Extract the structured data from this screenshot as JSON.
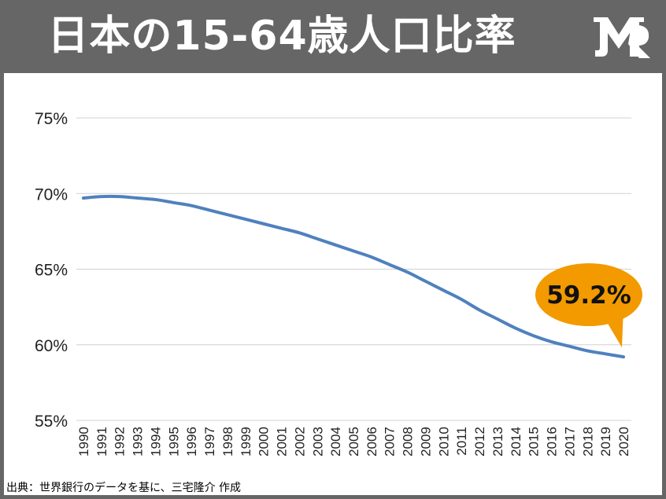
{
  "header": {
    "title": "日本の15-64歳人口比率",
    "logo_icon": "brand-logo-icon"
  },
  "colors": {
    "header_bg": "#666666",
    "line": "#4f81bd",
    "callout": "#f29a00",
    "grid": "#d0d0d0"
  },
  "chart_data": {
    "type": "line",
    "title": "日本の15-64歳人口比率",
    "xlabel": "",
    "ylabel": "",
    "ylim": [
      55,
      75
    ],
    "yticks": [
      55,
      60,
      65,
      70,
      75
    ],
    "ytick_labels": [
      "55%",
      "60%",
      "65%",
      "70%",
      "75%"
    ],
    "grid": true,
    "legend": "none",
    "categories": [
      "1990",
      "1991",
      "1992",
      "1993",
      "1994",
      "1995",
      "1996",
      "1997",
      "1998",
      "1999",
      "2000",
      "2001",
      "2002",
      "2003",
      "2004",
      "2005",
      "2006",
      "2007",
      "2008",
      "2009",
      "2010",
      "2011",
      "2012",
      "2013",
      "2014",
      "2015",
      "2016",
      "2017",
      "2018",
      "2019",
      "2020"
    ],
    "series": [
      {
        "values": [
          69.7,
          69.8,
          69.8,
          69.7,
          69.6,
          69.4,
          69.2,
          68.9,
          68.6,
          68.3,
          68.0,
          67.7,
          67.4,
          67.0,
          66.6,
          66.2,
          65.8,
          65.3,
          64.8,
          64.2,
          63.6,
          63.0,
          62.3,
          61.7,
          61.1,
          60.6,
          60.2,
          59.9,
          59.6,
          59.4,
          59.2
        ]
      }
    ],
    "annotation": {
      "text": "59.2%",
      "category": "2020",
      "value": 59.2
    }
  },
  "footer": {
    "source": "出典：世界銀行のデータを基に、三宅隆介 作成"
  }
}
